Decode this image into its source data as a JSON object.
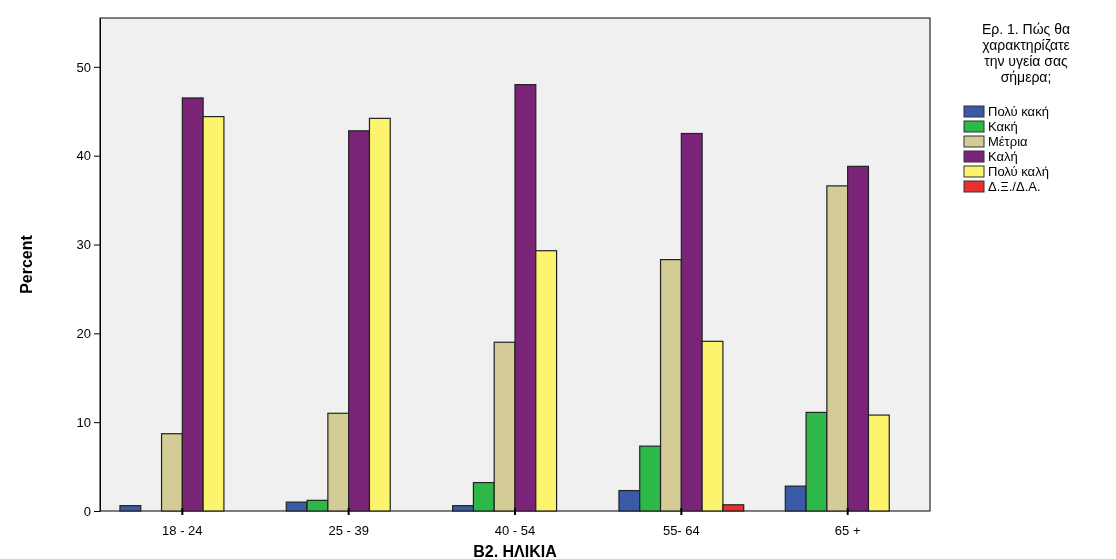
{
  "chart_data": {
    "type": "bar",
    "xlabel": "B2. ΗΛΙΚΙΑ",
    "ylabel": "Percent",
    "legend_title": "Ερ. 1. Πώς θα χαρακτηρίζατε την υγεία σας σήμερα;",
    "legend": "right",
    "grid": false,
    "categories": [
      "18 - 24",
      "25 - 39",
      "40 - 54",
      "55- 64",
      "65 +"
    ],
    "ylim": [
      0,
      55.5
    ],
    "yticks": [
      0,
      10,
      20,
      30,
      40,
      50
    ],
    "series": [
      {
        "name": "Πολύ κακή",
        "color": "#3a5aa8",
        "values": [
          0.6,
          1.0,
          0.6,
          2.3,
          2.8
        ]
      },
      {
        "name": "Κακή",
        "color": "#2eb84a",
        "values": [
          null,
          1.2,
          3.2,
          7.3,
          11.1
        ]
      },
      {
        "name": "Μέτρια",
        "color": "#d4cc96",
        "values": [
          8.7,
          11.0,
          19.0,
          28.3,
          36.6
        ]
      },
      {
        "name": "Καλή",
        "color": "#7a2478",
        "values": [
          46.5,
          42.8,
          48.0,
          42.5,
          38.8
        ]
      },
      {
        "name": "Πολύ καλή",
        "color": "#fcf46c",
        "values": [
          44.4,
          44.2,
          29.3,
          19.1,
          10.8
        ]
      },
      {
        "name": "Δ.Ξ./Δ.Α.",
        "color": "#e8302e",
        "values": [
          null,
          null,
          null,
          0.7,
          null
        ]
      }
    ]
  }
}
